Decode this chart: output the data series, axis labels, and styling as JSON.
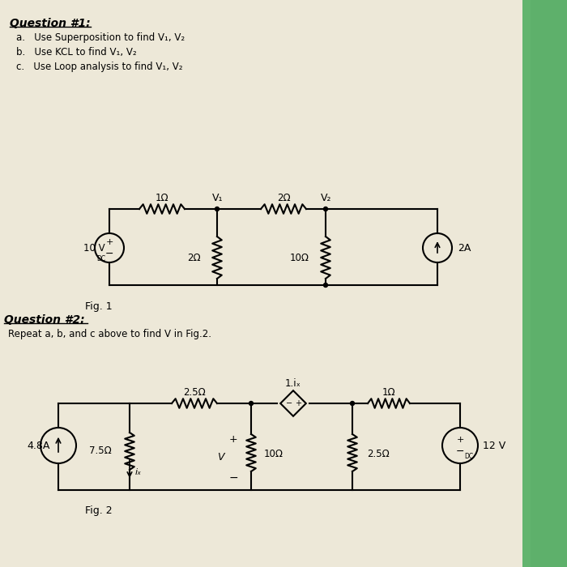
{
  "bg_color": "#d4cfc0",
  "paper_color": "#ede8d8",
  "title1": "Question #1:",
  "items1": [
    "a.   Use Superposition to find V₁, V₂",
    "b.   Use KCL to find V₁, V₂",
    "c.   Use Loop analysis to find V₁, V₂"
  ],
  "fig1_label": "Fig. 1",
  "title2": "Question #2:",
  "subtitle2": "Repeat a, b, and c above to find V in Fig.2.",
  "fig2_label": "Fig. 2"
}
